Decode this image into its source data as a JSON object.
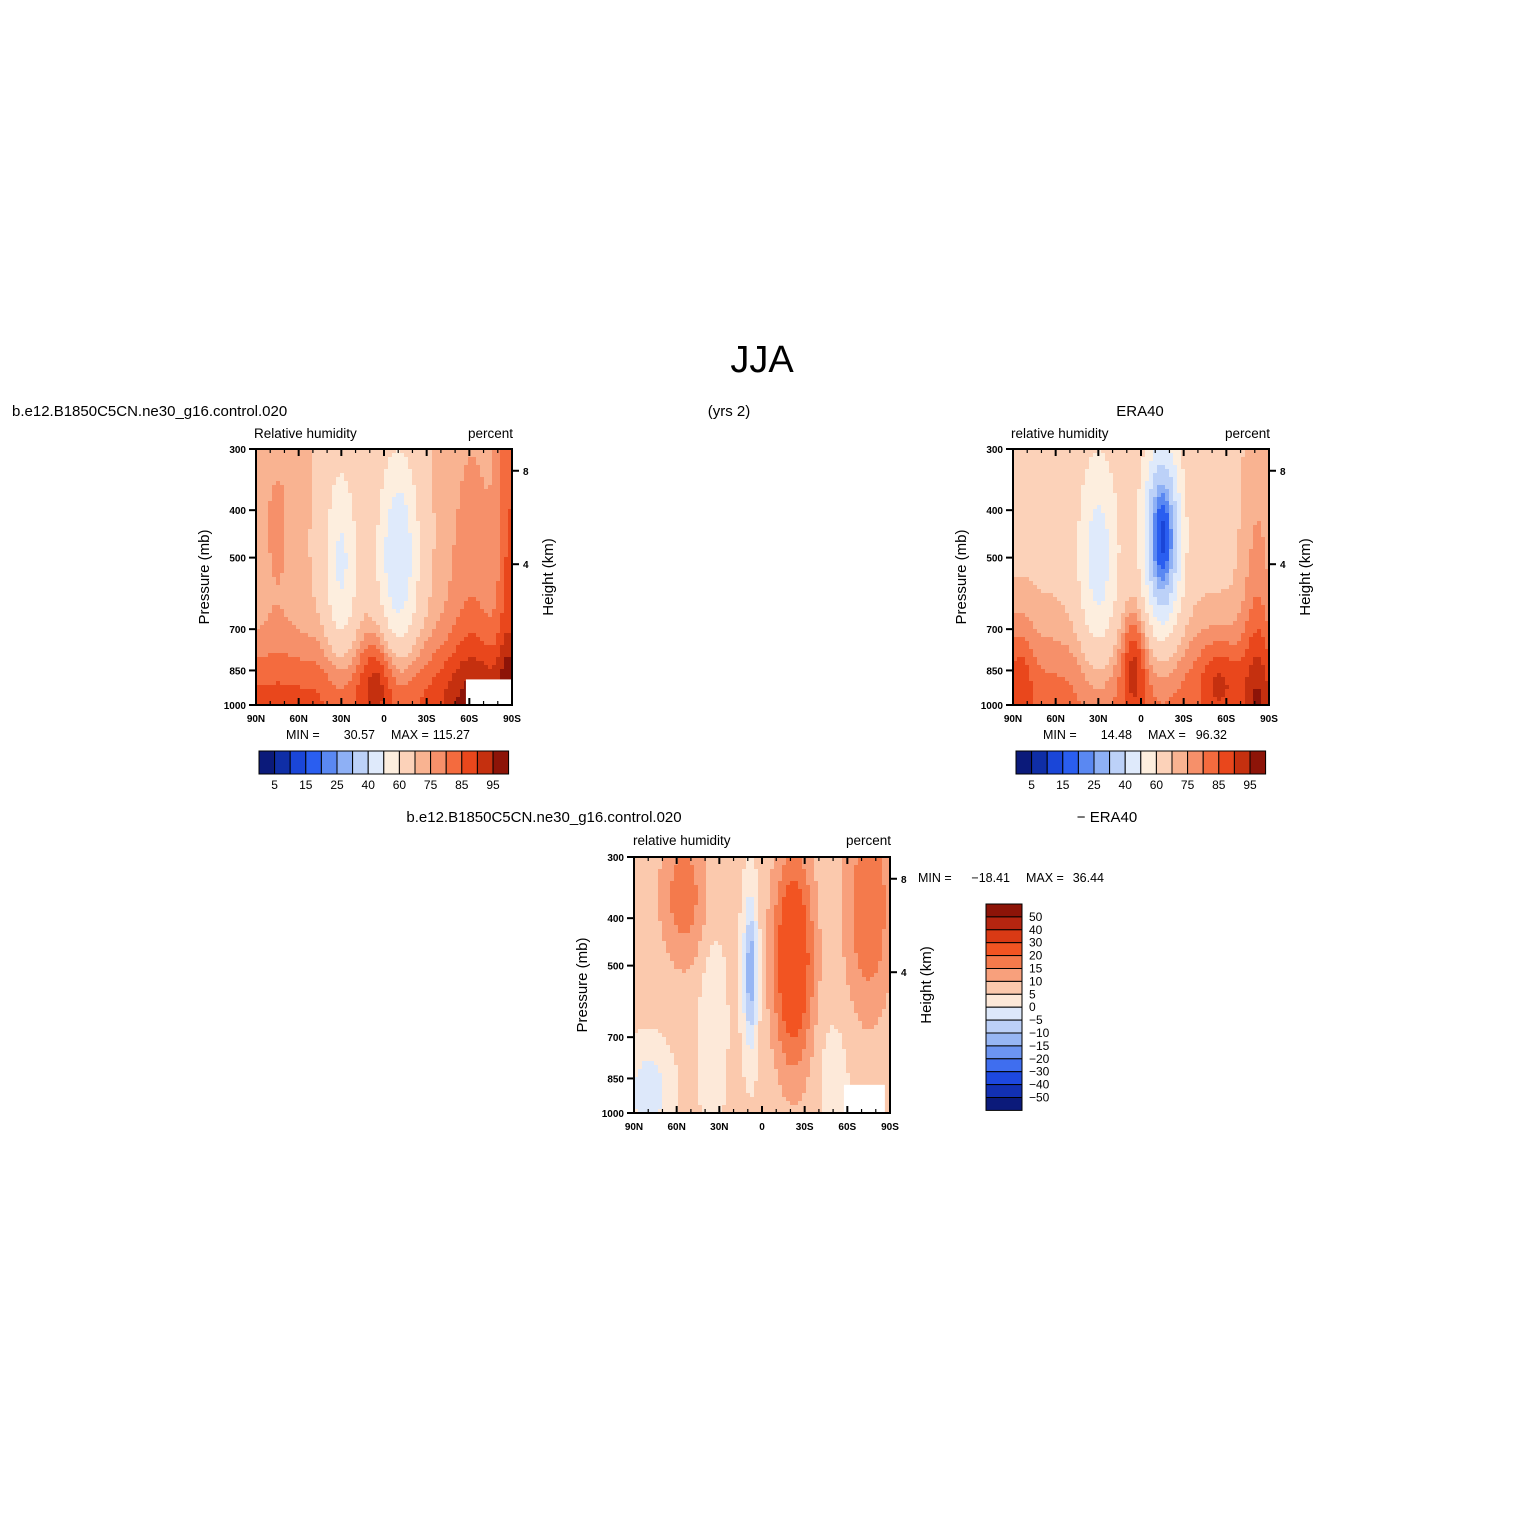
{
  "page": {
    "title": "JJA",
    "years": "(yrs 2)"
  },
  "chart_data": [
    {
      "type": "heatmap",
      "case": "b.e12.B1850C5CN.ne30_g16.control.020",
      "left_label": "Relative  humidity",
      "right_label": "percent",
      "ylabel": "Pressure  (mb)",
      "y2label": "Height  (km)",
      "x_ticks": [
        "90N",
        "60N",
        "30N",
        "0",
        "30S",
        "60S",
        "90S"
      ],
      "y_ticks": [
        "300",
        "400",
        "500",
        "700",
        "850",
        "1000"
      ],
      "y2_ticks": [
        "8",
        "4"
      ],
      "min_label": "MIN  =",
      "min_value": "30.57",
      "max_label": "MAX  =",
      "max_value": "115.27",
      "colorbar_labels": [
        "5",
        "15",
        "25",
        "40",
        "60",
        "75",
        "85",
        "95"
      ]
    },
    {
      "type": "heatmap",
      "case": "ERA40",
      "left_label": "relative  humidity",
      "right_label": "percent",
      "ylabel": "Pressure  (mb)",
      "y2label": "Height  (km)",
      "x_ticks": [
        "90N",
        "60N",
        "30N",
        "0",
        "30S",
        "60S",
        "90S"
      ],
      "y_ticks": [
        "300",
        "400",
        "500",
        "700",
        "850",
        "1000"
      ],
      "y2_ticks": [
        "8",
        "4"
      ],
      "min_label": "MIN  =",
      "min_value": "14.48",
      "max_label": "MAX  =",
      "max_value": "96.32",
      "colorbar_labels": [
        "5",
        "15",
        "25",
        "40",
        "60",
        "75",
        "85",
        "95"
      ]
    },
    {
      "type": "heatmap",
      "case": "b.e12.B1850C5CN.ne30_g16.control.020",
      "case_right": "−  ERA40",
      "left_label": "relative  humidity",
      "right_label": "percent",
      "ylabel": "Pressure  (mb)",
      "y2label": "Height  (km)",
      "x_ticks": [
        "90N",
        "60N",
        "30N",
        "0",
        "30S",
        "60S",
        "90S"
      ],
      "y_ticks": [
        "300",
        "400",
        "500",
        "700",
        "850",
        "1000"
      ],
      "y2_ticks": [
        "8",
        "4"
      ],
      "min_label": "MIN  =",
      "min_value": "−18.41",
      "max_label": "MAX  =",
      "max_value": "36.44",
      "colorbar_labels": [
        "50",
        "40",
        "30",
        "20",
        "15",
        "10",
        "5",
        "0",
        "−5",
        "−10",
        "−15",
        "−20",
        "−30",
        "−40",
        "−50"
      ]
    }
  ],
  "palettes": {
    "rh": [
      "#0b1a7a",
      "#0f2ea6",
      "#1a46d8",
      "#2a5ef0",
      "#5a88f2",
      "#8eb0f5",
      "#bcd1f8",
      "#dfeafb",
      "#fdeede",
      "#fcd2b9",
      "#f9b391",
      "#f6906a",
      "#f46b3e",
      "#e9471c",
      "#c5300f",
      "#8d1408"
    ],
    "diff": [
      "#8d1408",
      "#b52510",
      "#d93a15",
      "#f25422",
      "#f47a4c",
      "#f8a07c",
      "#fbc9ad",
      "#fde9d9",
      "#dde8fa",
      "#bcd0f8",
      "#97b6f4",
      "#6c94f1",
      "#3f6eef",
      "#1d48df",
      "#1230b3",
      "#0b1a7a"
    ]
  }
}
